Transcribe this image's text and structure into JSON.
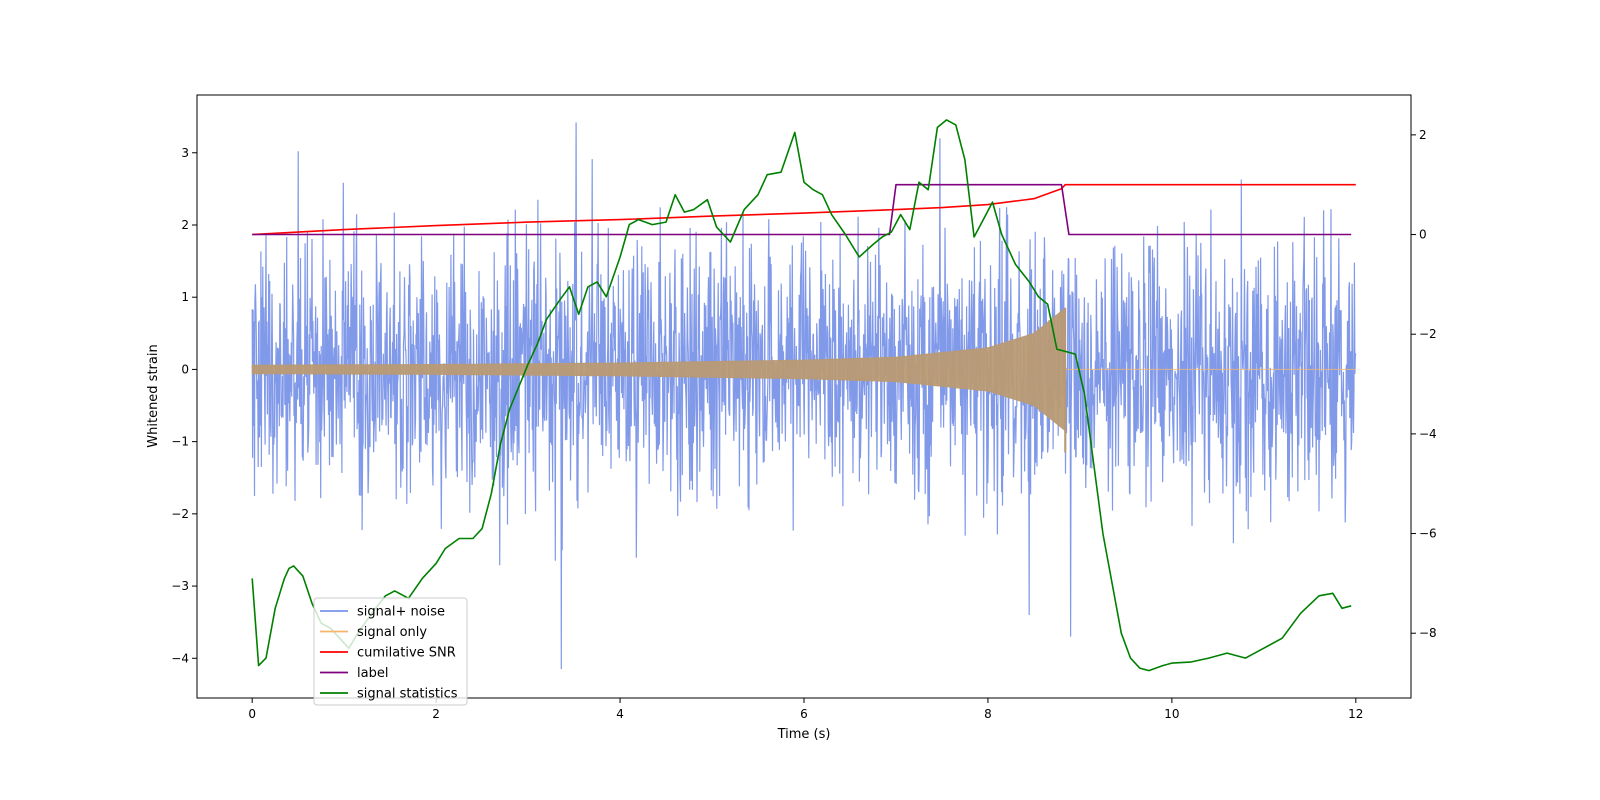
{
  "chart_data": {
    "type": "line",
    "title": "",
    "xlabel": "Time (s)",
    "ylabel": "Whitened strain",
    "y2label": "",
    "xlim": [
      -0.6,
      12.6
    ],
    "ylim": [
      -4.55,
      3.8
    ],
    "y2lim": [
      -9.3,
      2.8
    ],
    "grid": false,
    "legend_position": "lower-left",
    "xticks": [
      0,
      2,
      4,
      6,
      8,
      10,
      12
    ],
    "yticks": [
      -4,
      -3,
      -2,
      -1,
      0,
      1,
      2,
      3
    ],
    "y2ticks": [
      -8,
      -6,
      -4,
      -2,
      0,
      2
    ],
    "series": [
      {
        "name": "signal+ noise",
        "axis": "left",
        "color": "#7a94e8",
        "description": "whitened noise, t from 0 to 12 s",
        "t_range": [
          0,
          12
        ],
        "typical_envelope": [
          -2.4,
          2.3
        ],
        "notable_peaks": [
          {
            "t": 3.36,
            "value": -4.15
          },
          {
            "t": 3.52,
            "value": 3.42
          },
          {
            "t": 0.5,
            "value": 3.02
          },
          {
            "t": 8.45,
            "value": -3.4
          },
          {
            "t": 8.9,
            "value": -3.7
          },
          {
            "t": 7.48,
            "value": 3.2
          }
        ]
      },
      {
        "name": "signal only",
        "axis": "left",
        "color": "#f5b56a",
        "description": "chirp with growing amplitude ending at merger",
        "t_range": [
          0,
          8.84
        ],
        "amplitude_points": [
          [
            0,
            0.06
          ],
          [
            2,
            0.07
          ],
          [
            4,
            0.09
          ],
          [
            6,
            0.13
          ],
          [
            7,
            0.17
          ],
          [
            8,
            0.3
          ],
          [
            8.5,
            0.5
          ],
          [
            8.84,
            0.85
          ]
        ]
      },
      {
        "name": "cumilative SNR",
        "axis": "right",
        "color": "#ff0000",
        "x": [
          0,
          1,
          2,
          3,
          4,
          5,
          6,
          7,
          7.5,
          8,
          8.5,
          8.8,
          8.84,
          9,
          10,
          11,
          12
        ],
        "y": [
          0,
          0.1,
          0.18,
          0.25,
          0.3,
          0.37,
          0.43,
          0.5,
          0.54,
          0.6,
          0.72,
          0.92,
          1.0,
          1.0,
          1.0,
          1.0,
          1.0
        ]
      },
      {
        "name": "label",
        "axis": "right",
        "color": "#800080",
        "x": [
          0,
          6.93,
          7.0,
          8.8,
          8.88,
          11.95
        ],
        "y": [
          0,
          0,
          1,
          1,
          0,
          0
        ]
      },
      {
        "name": "signal statistics",
        "axis": "right",
        "color": "#008000",
        "x": [
          0,
          0.07,
          0.15,
          0.25,
          0.35,
          0.4,
          0.45,
          0.55,
          0.65,
          0.75,
          0.85,
          0.95,
          1.05,
          1.15,
          1.3,
          1.45,
          1.55,
          1.7,
          1.85,
          2.0,
          2.1,
          2.25,
          2.4,
          2.5,
          2.6,
          2.7,
          2.8,
          2.9,
          3.0,
          3.1,
          3.2,
          3.35,
          3.45,
          3.55,
          3.65,
          3.75,
          3.85,
          4.0,
          4.1,
          4.2,
          4.35,
          4.5,
          4.6,
          4.7,
          4.8,
          4.95,
          5.05,
          5.2,
          5.35,
          5.5,
          5.6,
          5.75,
          5.9,
          6.0,
          6.1,
          6.2,
          6.3,
          6.45,
          6.6,
          6.75,
          6.85,
          6.95,
          7.05,
          7.15,
          7.25,
          7.35,
          7.45,
          7.55,
          7.65,
          7.75,
          7.85,
          7.95,
          8.05,
          8.15,
          8.3,
          8.45,
          8.55,
          8.65,
          8.75,
          8.85,
          8.95,
          9.05,
          9.15,
          9.25,
          9.35,
          9.45,
          9.55,
          9.65,
          9.75,
          9.9,
          10.0,
          10.2,
          10.4,
          10.6,
          10.8,
          11.0,
          11.2,
          11.4,
          11.6,
          11.75,
          11.85,
          11.95
        ],
        "y": [
          -6.9,
          -8.65,
          -8.5,
          -7.5,
          -6.9,
          -6.7,
          -6.65,
          -6.85,
          -7.4,
          -7.8,
          -7.9,
          -8.1,
          -8.3,
          -8.0,
          -7.6,
          -7.25,
          -7.15,
          -7.3,
          -6.9,
          -6.6,
          -6.3,
          -6.1,
          -6.1,
          -5.9,
          -5.2,
          -4.2,
          -3.5,
          -3.05,
          -2.6,
          -2.2,
          -1.7,
          -1.3,
          -1.05,
          -1.6,
          -1.05,
          -0.95,
          -1.25,
          -0.45,
          0.2,
          0.3,
          0.2,
          0.25,
          0.8,
          0.45,
          0.5,
          0.7,
          0.15,
          -0.15,
          0.5,
          0.8,
          1.2,
          1.25,
          2.05,
          1.05,
          0.9,
          0.8,
          0.4,
          0.0,
          -0.45,
          -0.2,
          -0.05,
          0.05,
          0.4,
          0.1,
          1.05,
          0.9,
          2.15,
          2.3,
          2.2,
          1.5,
          -0.05,
          0.3,
          0.65,
          0.0,
          -0.6,
          -0.95,
          -1.25,
          -1.4,
          -2.3,
          -2.35,
          -2.4,
          -3.2,
          -4.6,
          -6.0,
          -7.0,
          -8.0,
          -8.5,
          -8.7,
          -8.75,
          -8.65,
          -8.6,
          -8.58,
          -8.5,
          -8.4,
          -8.5,
          -8.3,
          -8.1,
          -7.6,
          -7.25,
          -7.2,
          -7.5,
          -7.45
        ]
      }
    ]
  }
}
